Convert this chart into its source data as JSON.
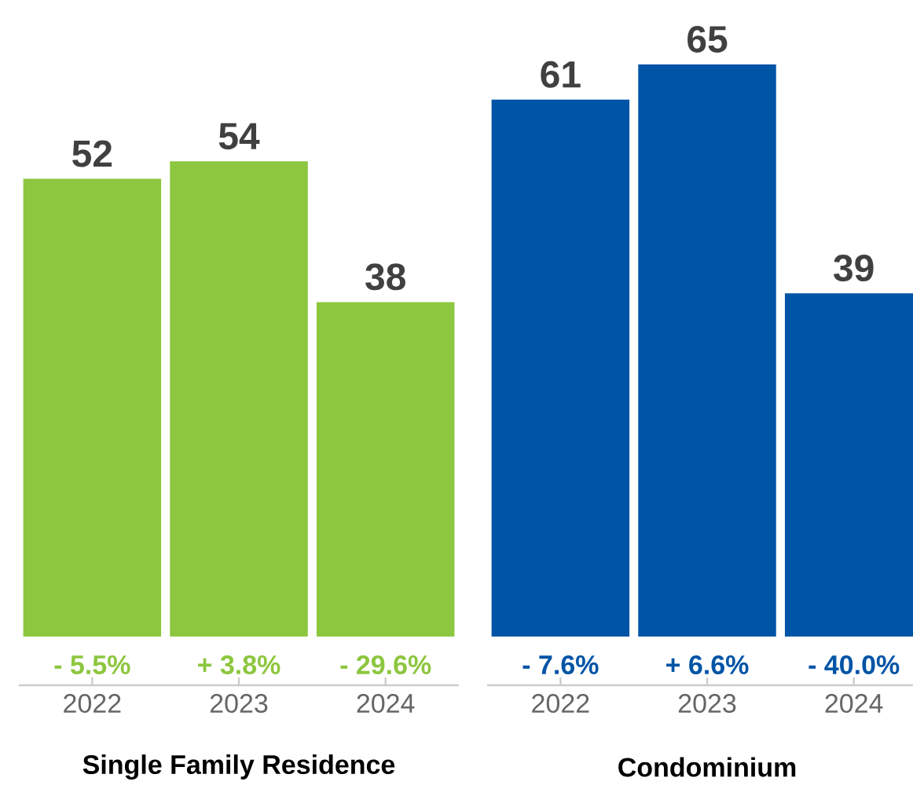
{
  "chart_data": [
    {
      "type": "bar",
      "xlabel": "Single Family Residence",
      "categories": [
        "2022",
        "2023",
        "2024"
      ],
      "values": [
        52,
        54,
        38
      ],
      "color": "#8dc63f",
      "data_labels": true,
      "annotations": [
        "- 5.5%",
        "+ 3.8%",
        "- 29.6%"
      ]
    },
    {
      "type": "bar",
      "xlabel": "Condominium",
      "categories": [
        "2022",
        "2023",
        "2024"
      ],
      "values": [
        61,
        65,
        39
      ],
      "color": "#0054a6",
      "data_labels": true,
      "annotations": [
        "- 7.6%",
        "+ 6.6%",
        "- 40.0%"
      ]
    }
  ]
}
